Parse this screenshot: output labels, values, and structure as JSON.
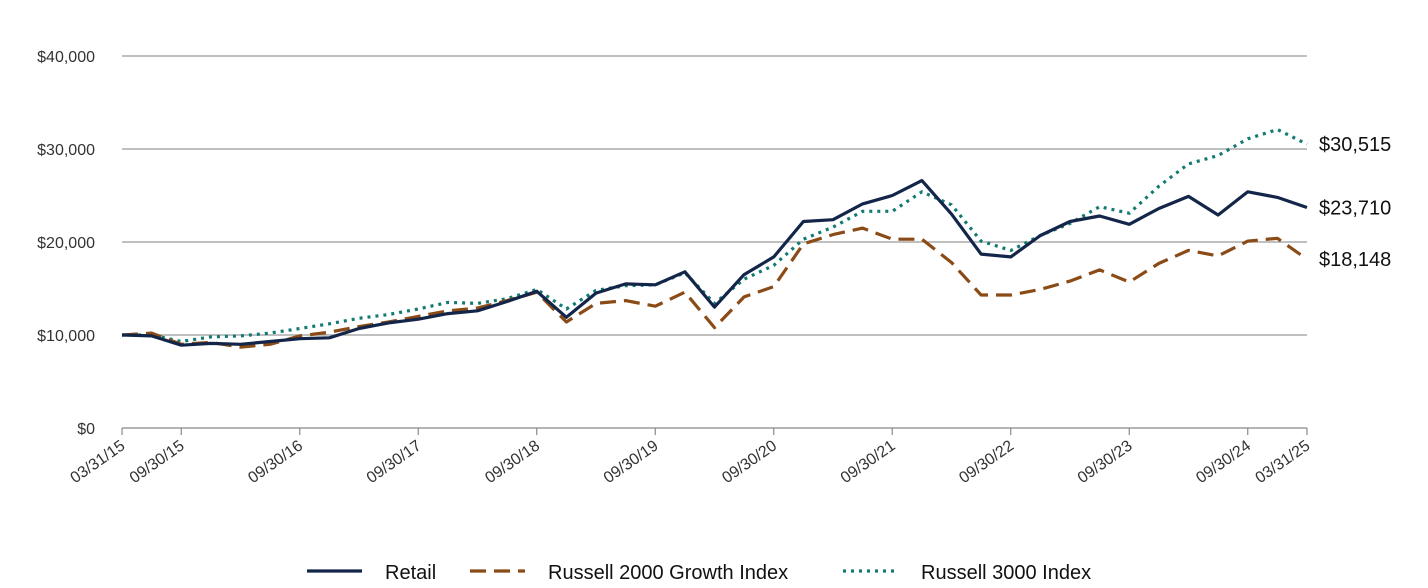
{
  "chart_data": {
    "type": "line",
    "title": "",
    "xlabel": "",
    "ylabel": "",
    "ylim": [
      0,
      40000
    ],
    "y_ticks": [
      0,
      10000,
      20000,
      30000,
      40000
    ],
    "y_tick_labels": [
      "$0",
      "$10,000",
      "$20,000",
      "$30,000",
      "$40,000"
    ],
    "x_tick_indices": [
      0,
      2,
      6,
      10,
      14,
      18,
      22,
      26,
      30,
      34,
      38,
      40
    ],
    "x_tick_labels": [
      "03/31/15",
      "09/30/15",
      "09/30/16",
      "09/30/17",
      "09/30/18",
      "09/30/19",
      "09/30/20",
      "09/30/21",
      "09/30/22",
      "09/30/23",
      "09/30/24",
      "03/31/25"
    ],
    "x": [
      "03/31/15",
      "06/30/15",
      "09/30/15",
      "12/31/15",
      "03/31/16",
      "06/30/16",
      "09/30/16",
      "12/31/16",
      "03/31/17",
      "06/30/17",
      "09/30/17",
      "12/31/17",
      "03/31/18",
      "06/30/18",
      "09/30/18",
      "12/31/18",
      "03/31/19",
      "06/30/19",
      "09/30/19",
      "12/31/19",
      "03/31/20",
      "06/30/20",
      "09/30/20",
      "12/31/20",
      "03/31/21",
      "06/30/21",
      "09/30/21",
      "12/31/21",
      "03/31/22",
      "06/30/22",
      "09/30/22",
      "12/31/22",
      "03/31/23",
      "06/30/23",
      "09/30/23",
      "12/31/23",
      "03/31/24",
      "06/30/24",
      "09/30/24",
      "12/31/24",
      "03/31/25"
    ],
    "grid": true,
    "legend_position": "bottom",
    "series": [
      {
        "name": "Retail",
        "color": "#13264a",
        "style": "solid",
        "end_label": "$23,710",
        "values": [
          10000,
          9900,
          8900,
          9100,
          9000,
          9300,
          9600,
          9700,
          10700,
          11300,
          11700,
          12300,
          12600,
          13600,
          14700,
          11900,
          14500,
          15500,
          15400,
          16800,
          13000,
          16500,
          18400,
          22200,
          22400,
          24100,
          25000,
          26600,
          23000,
          18700,
          18400,
          20700,
          22200,
          22800,
          21900,
          23600,
          24900,
          22900,
          25400,
          24800,
          23710
        ]
      },
      {
        "name": "Russell 2000 Growth Index",
        "color": "#8a4b16",
        "style": "dashed",
        "end_label": "$18,148",
        "values": [
          10000,
          10200,
          9000,
          9200,
          8700,
          9000,
          9900,
          10300,
          10900,
          11400,
          12000,
          12600,
          12900,
          13700,
          14600,
          11400,
          13400,
          13700,
          13100,
          14600,
          10800,
          14100,
          15200,
          19800,
          20800,
          21500,
          20300,
          20300,
          17800,
          14300,
          14300,
          14900,
          15800,
          17000,
          15700,
          17700,
          19100,
          18500,
          20100,
          20400,
          18148
        ]
      },
      {
        "name": "Russell 3000 Index",
        "color": "#127a72",
        "style": "dotted",
        "end_label": "$30,515",
        "values": [
          10000,
          10000,
          9300,
          9800,
          9900,
          10200,
          10700,
          11200,
          11800,
          12200,
          12800,
          13500,
          13400,
          13900,
          14900,
          12800,
          14800,
          15300,
          15400,
          16700,
          13400,
          16000,
          17500,
          20300,
          21600,
          23300,
          23300,
          25400,
          24000,
          20100,
          19100,
          20700,
          22000,
          23800,
          23100,
          26000,
          28400,
          29300,
          31100,
          32100,
          30515
        ]
      }
    ]
  }
}
